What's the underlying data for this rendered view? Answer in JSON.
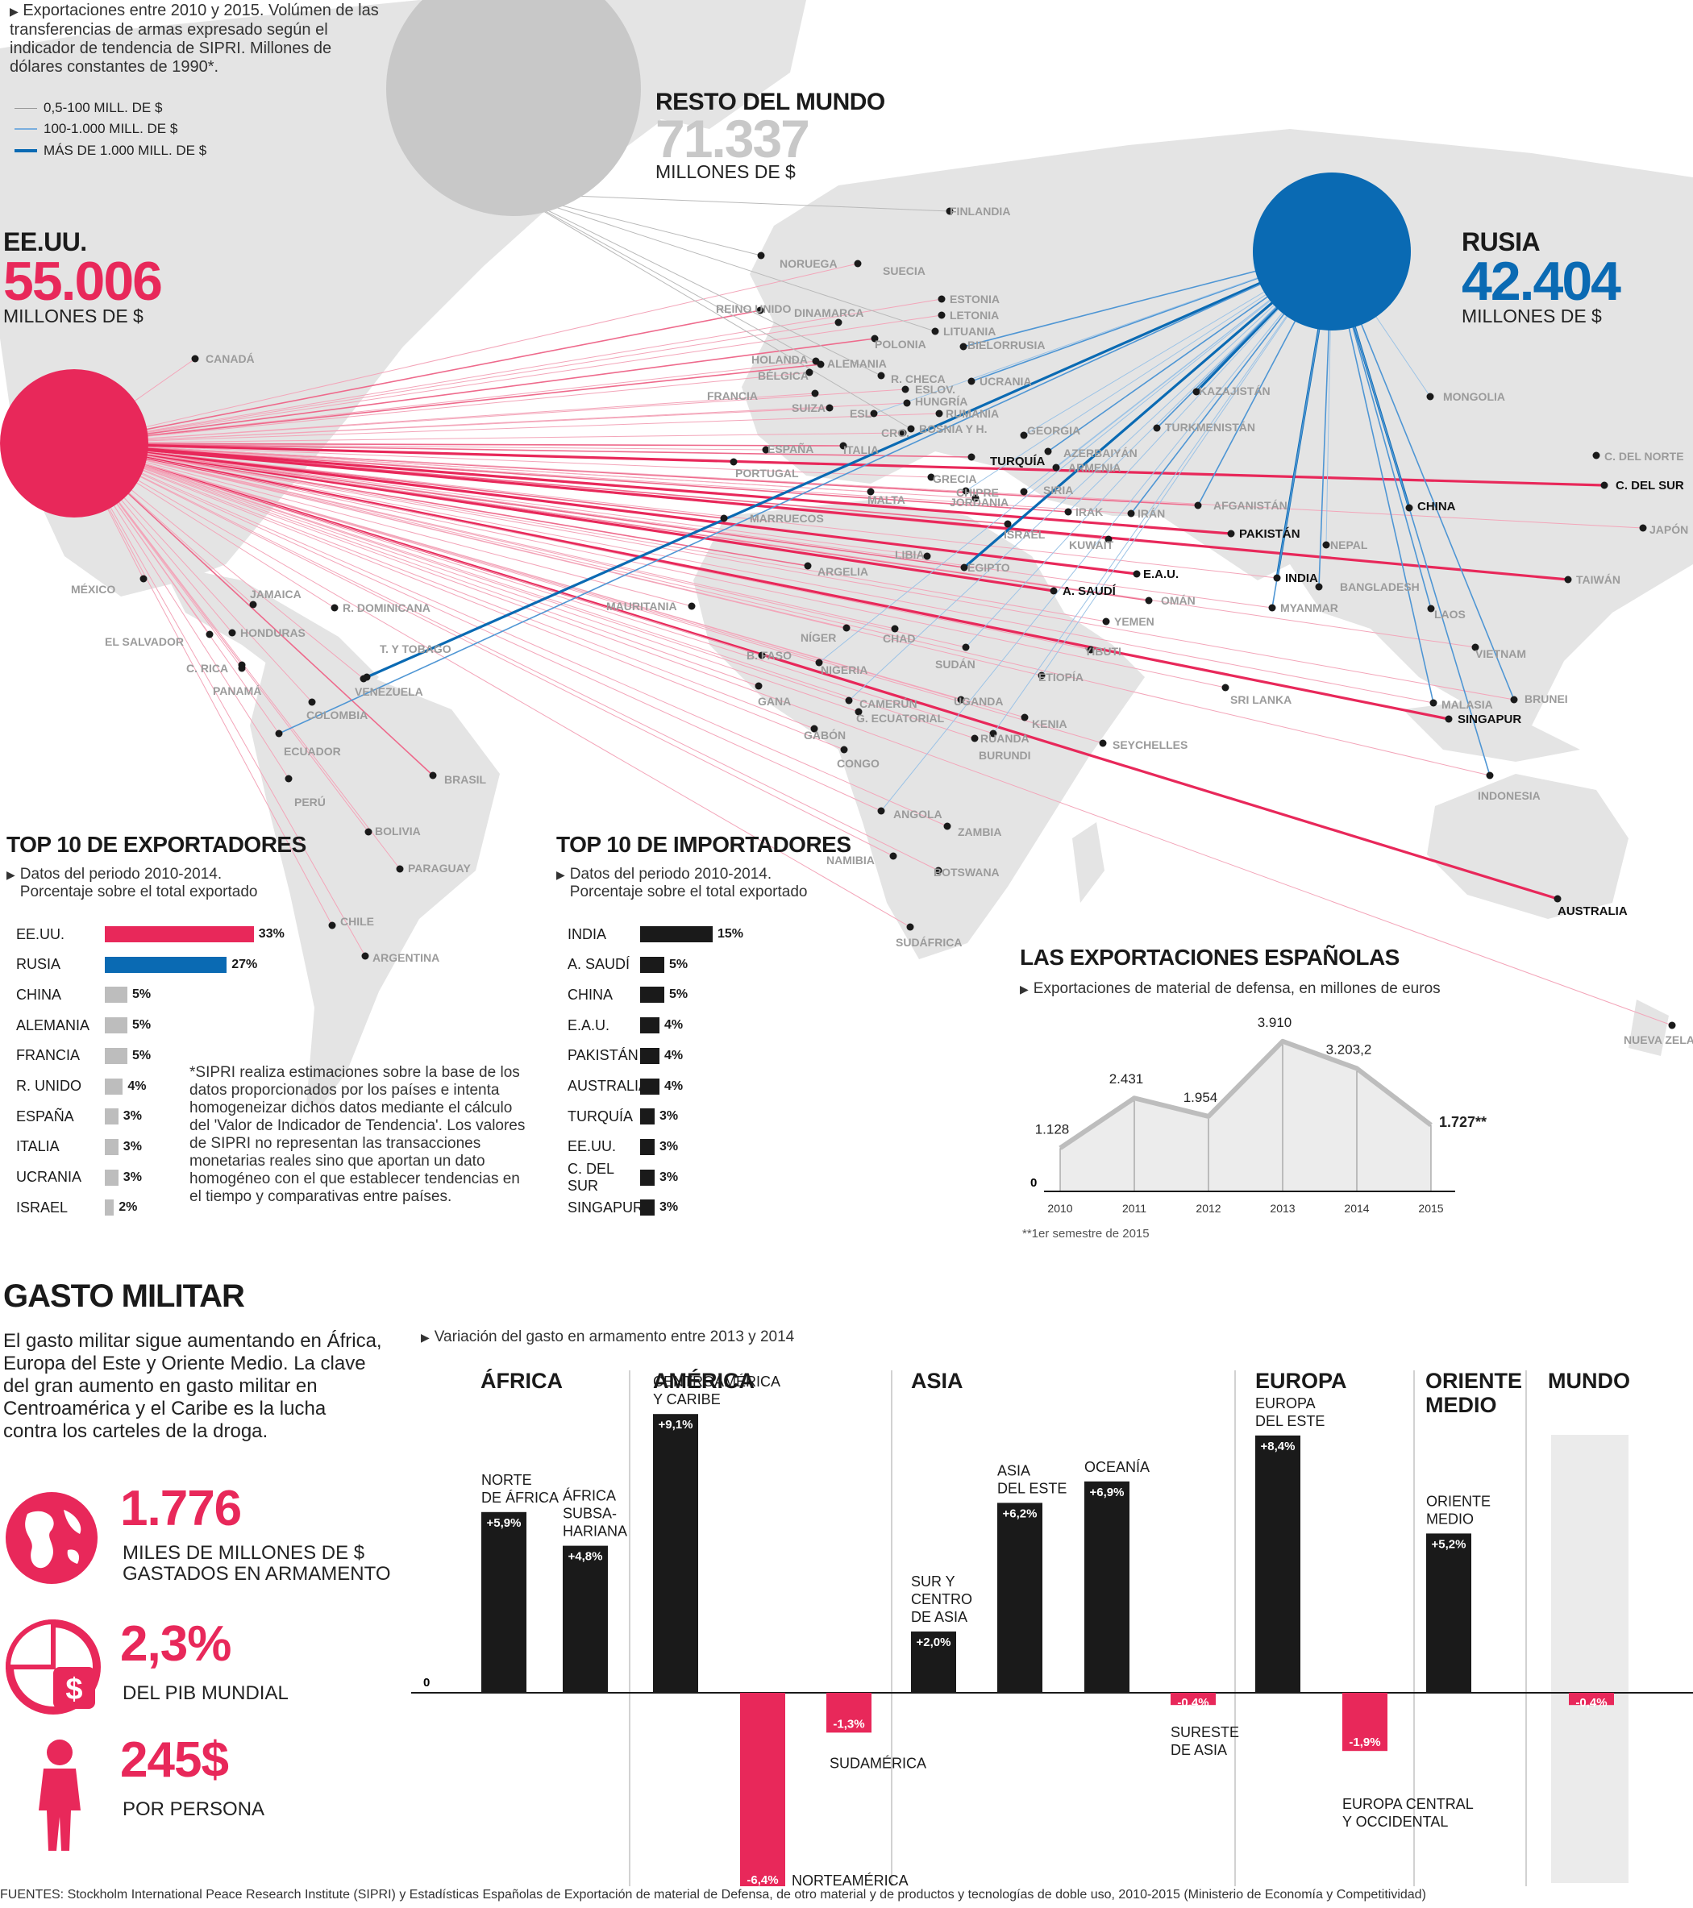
{
  "colors": {
    "us": "#e8285a",
    "russia": "#0a6ab3",
    "rest": "#c8c8c8",
    "black": "#1a1a1a",
    "neg": "#e8285a",
    "map": "#e3e3e3"
  },
  "legend": {
    "intro": "Exportaciones entre 2010 y 2015. Volúmen de las transferencias de armas expresado según el indicador de tendencia de SIPRI. Millones de dólares constantes de 1990*.",
    "items": [
      "0,5-100 MILL. DE $",
      "100-1.000 MILL. DE $",
      "MÁS DE 1.000 MILL. DE $"
    ]
  },
  "exporters": {
    "rest": {
      "name": "RESTO DEL MUNDO",
      "value": "71.337",
      "unit": "MILLONES DE $"
    },
    "us": {
      "name": "EE.UU.",
      "value": "55.006",
      "unit": "MILLONES DE $"
    },
    "russia": {
      "name": "RUSIA",
      "value": "42.404",
      "unit": "MILLONES DE $"
    }
  },
  "map_labels": [
    {
      "name": "FINLANDIA",
      "hl": false
    },
    {
      "name": "NORUEGA",
      "hl": false
    },
    {
      "name": "SUECIA",
      "hl": false
    },
    {
      "name": "REINO UNIDO",
      "hl": false
    },
    {
      "name": "DINAMARCA",
      "hl": false
    },
    {
      "name": "ESTONIA",
      "hl": false
    },
    {
      "name": "LETONIA",
      "hl": false
    },
    {
      "name": "LITUANIA",
      "hl": false
    },
    {
      "name": "POLONIA",
      "hl": false
    },
    {
      "name": "BIELORRUSIA",
      "hl": false
    },
    {
      "name": "HOLANDA",
      "hl": false
    },
    {
      "name": "ALEMANIA",
      "hl": false
    },
    {
      "name": "BÉLGICA",
      "hl": false
    },
    {
      "name": "R. CHECA",
      "hl": false
    },
    {
      "name": "ESLOV.",
      "hl": false
    },
    {
      "name": "UCRANIA",
      "hl": false
    },
    {
      "name": "FRANCIA",
      "hl": false
    },
    {
      "name": "SUIZA",
      "hl": false
    },
    {
      "name": "HUNGRÍA",
      "hl": false
    },
    {
      "name": "RUMANÍA",
      "hl": false
    },
    {
      "name": "ESL",
      "hl": false
    },
    {
      "name": "BOSNIA Y H.",
      "hl": false
    },
    {
      "name": "CRO.",
      "hl": false
    },
    {
      "name": "ESPAÑA",
      "hl": false
    },
    {
      "name": "ITALIA",
      "hl": false
    },
    {
      "name": "GEORGIA",
      "hl": false
    },
    {
      "name": "TURQUÍA",
      "hl": true
    },
    {
      "name": "AZERBAIYÁN",
      "hl": false
    },
    {
      "name": "ARMENIA",
      "hl": false
    },
    {
      "name": "PORTUGAL",
      "hl": false
    },
    {
      "name": "GRECIA",
      "hl": false
    },
    {
      "name": "CHIPRE",
      "hl": false
    },
    {
      "name": "SIRIA",
      "hl": false
    },
    {
      "name": "JORDANIA",
      "hl": false
    },
    {
      "name": "MALTA",
      "hl": false
    },
    {
      "name": "IRAK",
      "hl": false
    },
    {
      "name": "IRÁN",
      "hl": false
    },
    {
      "name": "MARRUECOS",
      "hl": false
    },
    {
      "name": "ISRAEL",
      "hl": false
    },
    {
      "name": "KUWAIT",
      "hl": false
    },
    {
      "name": "LIBIA",
      "hl": false
    },
    {
      "name": "EGIPTO",
      "hl": false
    },
    {
      "name": "ARGELIA",
      "hl": false
    },
    {
      "name": "E.A.U.",
      "hl": true
    },
    {
      "name": "A. SAUDÍ",
      "hl": true
    },
    {
      "name": "OMÁN",
      "hl": false
    },
    {
      "name": "YEMEN",
      "hl": false
    },
    {
      "name": "KAZAJISTÁN",
      "hl": false
    },
    {
      "name": "TURKMENISTÁN",
      "hl": false
    },
    {
      "name": "AFGANISTÁN",
      "hl": false
    },
    {
      "name": "PAKISTÁN",
      "hl": true
    },
    {
      "name": "NEPAL",
      "hl": false
    },
    {
      "name": "INDIA",
      "hl": true
    },
    {
      "name": "BANGLADESH",
      "hl": false
    },
    {
      "name": "MYANMAR",
      "hl": false
    },
    {
      "name": "LAOS",
      "hl": false
    },
    {
      "name": "VIETNAM",
      "hl": false
    },
    {
      "name": "CHINA",
      "hl": true
    },
    {
      "name": "MONGOLIA",
      "hl": false
    },
    {
      "name": "C. DEL NORTE",
      "hl": false
    },
    {
      "name": "C. DEL SUR",
      "hl": true
    },
    {
      "name": "JAPÓN",
      "hl": false
    },
    {
      "name": "TAIWÁN",
      "hl": false
    },
    {
      "name": "SRI LANKA",
      "hl": false
    },
    {
      "name": "MALASIA",
      "hl": false
    },
    {
      "name": "SINGAPUR",
      "hl": true
    },
    {
      "name": "BRUNEI",
      "hl": false
    },
    {
      "name": "INDONESIA",
      "hl": false
    },
    {
      "name": "AUSTRALIA",
      "hl": true
    },
    {
      "name": "NUEVA ZELANDA",
      "hl": false
    },
    {
      "name": "CANADÁ",
      "hl": false
    },
    {
      "name": "MÉXICO",
      "hl": false
    },
    {
      "name": "JAMAICA",
      "hl": false
    },
    {
      "name": "R. DOMINICANA",
      "hl": false
    },
    {
      "name": "HONDURAS",
      "hl": false
    },
    {
      "name": "EL SALVADOR",
      "hl": false
    },
    {
      "name": "C. RICA",
      "hl": false
    },
    {
      "name": "PANAMÁ",
      "hl": false
    },
    {
      "name": "T. Y TOBAGO",
      "hl": false
    },
    {
      "name": "VENEZUELA",
      "hl": false
    },
    {
      "name": "COLOMBIA",
      "hl": false
    },
    {
      "name": "ECUADOR",
      "hl": false
    },
    {
      "name": "BRASIL",
      "hl": false
    },
    {
      "name": "PERÚ",
      "hl": false
    },
    {
      "name": "BOLIVIA",
      "hl": false
    },
    {
      "name": "PARAGUAY",
      "hl": false
    },
    {
      "name": "CHILE",
      "hl": false
    },
    {
      "name": "ARGENTINA",
      "hl": false
    },
    {
      "name": "MAURITANIA",
      "hl": false
    },
    {
      "name": "NÍGER",
      "hl": false
    },
    {
      "name": "CHAD",
      "hl": false
    },
    {
      "name": "SUDÁN",
      "hl": false
    },
    {
      "name": "B. FASO",
      "hl": false
    },
    {
      "name": "NIGERIA",
      "hl": false
    },
    {
      "name": "YIBUTI",
      "hl": false
    },
    {
      "name": "ETIOPÍA",
      "hl": false
    },
    {
      "name": "GANA",
      "hl": false
    },
    {
      "name": "CAMERÚN",
      "hl": false
    },
    {
      "name": "G. ECUATORIAL",
      "hl": false
    },
    {
      "name": "UGANDA",
      "hl": false
    },
    {
      "name": "KENIA",
      "hl": false
    },
    {
      "name": "GABÓN",
      "hl": false
    },
    {
      "name": "CONGO",
      "hl": false
    },
    {
      "name": "RUANDA",
      "hl": false
    },
    {
      "name": "BURUNDI",
      "hl": false
    },
    {
      "name": "SEYCHELLES",
      "hl": false
    },
    {
      "name": "ANGOLA",
      "hl": false
    },
    {
      "name": "ZAMBIA",
      "hl": false
    },
    {
      "name": "NAMIBIA",
      "hl": false
    },
    {
      "name": "BOTSWANA",
      "hl": false
    },
    {
      "name": "SUDÁFRICA",
      "hl": false
    }
  ],
  "top_exporters": {
    "title": "TOP 10 DE EXPORTADORES",
    "subtitle": "Datos del periodo 2010-2014. Porcentaje sobre el total exportado",
    "rows": [
      {
        "name": "EE.UU.",
        "pct": 33,
        "label": "33%",
        "color": "#e8285a"
      },
      {
        "name": "RUSIA",
        "pct": 27,
        "label": "27%",
        "color": "#0a6ab3"
      },
      {
        "name": "CHINA",
        "pct": 5,
        "label": "5%",
        "color": "#bdbdbd"
      },
      {
        "name": "ALEMANIA",
        "pct": 5,
        "label": "5%",
        "color": "#bdbdbd"
      },
      {
        "name": "FRANCIA",
        "pct": 5,
        "label": "5%",
        "color": "#bdbdbd"
      },
      {
        "name": "R. UNIDO",
        "pct": 4,
        "label": "4%",
        "color": "#bdbdbd"
      },
      {
        "name": "ESPAÑA",
        "pct": 3,
        "label": "3%",
        "color": "#bdbdbd"
      },
      {
        "name": "ITALIA",
        "pct": 3,
        "label": "3%",
        "color": "#bdbdbd"
      },
      {
        "name": "UCRANIA",
        "pct": 3,
        "label": "3%",
        "color": "#bdbdbd"
      },
      {
        "name": "ISRAEL",
        "pct": 2,
        "label": "2%",
        "color": "#bdbdbd"
      }
    ]
  },
  "top_importers": {
    "title": "TOP 10 DE IMPORTADORES",
    "subtitle": "Datos del periodo 2010-2014. Porcentaje sobre el total exportado",
    "rows": [
      {
        "name": "INDIA",
        "pct": 15,
        "label": "15%"
      },
      {
        "name": "A. SAUDÍ",
        "pct": 5,
        "label": "5%"
      },
      {
        "name": "CHINA",
        "pct": 5,
        "label": "5%"
      },
      {
        "name": "E.A.U.",
        "pct": 4,
        "label": "4%"
      },
      {
        "name": "PAKISTÁN",
        "pct": 4,
        "label": "4%"
      },
      {
        "name": "AUSTRALIA",
        "pct": 4,
        "label": "4%"
      },
      {
        "name": "TURQUÍA",
        "pct": 3,
        "label": "3%"
      },
      {
        "name": "EE.UU.",
        "pct": 3,
        "label": "3%"
      },
      {
        "name": "C. DEL SUR",
        "pct": 3,
        "label": "3%"
      },
      {
        "name": "SINGAPUR",
        "pct": 3,
        "label": "3%"
      }
    ]
  },
  "note": "*SIPRI realiza estimaciones sobre la base de los datos proporcionados por los países e intenta homogeneizar dichos datos mediante el cálculo del 'Valor de Indicador de Tendencia'. Los valores de SIPRI no representan las transacciones monetarias reales sino que aportan un dato homogéneo con el que establecer tendencias en el tiempo y comparativas entre países.",
  "chart_data": [
    {
      "type": "area",
      "title": "LAS EXPORTACIONES ESPAÑOLAS",
      "subtitle": "Exportaciones de material de defensa, en millones de euros",
      "x": [
        "2010",
        "2011",
        "2012",
        "2013",
        "2014",
        "2015"
      ],
      "values": [
        1128,
        2431,
        1954,
        3910,
        3203.2,
        1727
      ],
      "value_labels": [
        "1.128",
        "2.431",
        "1.954",
        "3.910",
        "3.203,2",
        "1.727**"
      ],
      "zero_label": "0",
      "ylim": [
        0,
        4200
      ],
      "footnote": "**1er semestre de 2015"
    },
    {
      "type": "bar",
      "title": "Variación del gasto en armamento entre 2013 y 2014",
      "zero_label": "0",
      "ylim": [
        -7,
        10
      ],
      "groups": [
        "ÁFRICA",
        "AMÉRICA",
        "ASIA",
        "EUROPA",
        "ORIENTE MEDIO",
        "MUNDO"
      ],
      "categories": [
        "NORTE DE ÁFRICA",
        "ÁFRICA SUBSA-HARIANA",
        "CENTROAMÉRICA Y CARIBE",
        "NORTEAMÉRICA",
        "SUDAMÉRICA",
        "SUR Y CENTRO DE ASIA",
        "ASIA DEL ESTE",
        "OCEANÍA",
        "SURESTE DE ASIA",
        "EUROPA DEL ESTE",
        "EUROPA CENTRAL Y OCCIDENTAL",
        "ORIENTE MEDIO",
        "MUNDO"
      ],
      "values": [
        5.9,
        4.8,
        9.1,
        -6.4,
        -1.3,
        2.0,
        6.2,
        6.9,
        -0.4,
        8.4,
        -1.9,
        5.2,
        -0.4
      ],
      "value_labels": [
        "+5,9%",
        "+4,8%",
        "+9,1%",
        "-6,4%",
        "-1,3%",
        "+2,0%",
        "+6,2%",
        "+6,9%",
        "-0,4%",
        "+8,4%",
        "-1,9%",
        "+5,2%",
        "-0,4%"
      ]
    }
  ],
  "gasto": {
    "title": "GASTO MILITAR",
    "text": "El gasto militar sigue aumentando en África, Europa del Este y Oriente Medio. La clave del gran aumento en gasto militar en Centroamérica y el Caribe es la lucha contra los carteles de la droga.",
    "stats": [
      {
        "value": "1.776",
        "caption": "MILES DE MILLONES DE $ GASTADOS EN ARMAMENTO",
        "icon": "globe-icon"
      },
      {
        "value": "2,3%",
        "caption": "DEL PIB MUNDIAL",
        "icon": "pie-dollar-icon"
      },
      {
        "value": "245$",
        "caption": "POR PERSONA",
        "icon": "person-icon"
      }
    ]
  },
  "footer": "FUENTES: Stockholm International Peace Research Institute (SIPRI) y Estadísticas Españolas de Exportación de material de Defensa, de otro material y de productos y tecnologías de doble uso, 2010-2015 (Ministerio de Economía y Competitividad)"
}
